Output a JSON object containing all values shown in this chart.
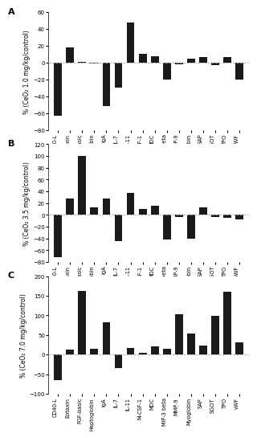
{
  "categories": [
    "CD40-L",
    "Eotaxin",
    "FGF-basic",
    "Haptoglobin",
    "IgA",
    "IL-7",
    "IL-11",
    "M-CSF-1",
    "MDC",
    "MIP-3 beta",
    "MMP-9",
    "Myoglobin",
    "SAP",
    "SGOT",
    "TPO",
    "vWF"
  ],
  "panel_A": {
    "values": [
      -63,
      18,
      1,
      -1,
      -52,
      -30,
      48,
      11,
      8,
      -20,
      -2,
      5,
      7,
      -3,
      7,
      -20
    ],
    "ylabel": "% (CeO₂ 1.0 mg/kg/control)",
    "ylim": [
      -80,
      60
    ],
    "yticks": [
      -80,
      -60,
      -40,
      -20,
      0,
      20,
      40,
      60
    ],
    "label": "A"
  },
  "panel_B": {
    "values": [
      -72,
      28,
      100,
      13,
      28,
      -45,
      37,
      10,
      16,
      -42,
      -3,
      -40,
      13,
      -3,
      -5,
      -8
    ],
    "ylabel": "% (CeO₂ 3.5 mg/kg/control)",
    "ylim": [
      -80,
      120
    ],
    "yticks": [
      -80,
      -60,
      -40,
      -20,
      0,
      20,
      40,
      60,
      80,
      100,
      120
    ],
    "label": "B"
  },
  "panel_C": {
    "values": [
      -65,
      12,
      163,
      15,
      82,
      -35,
      17,
      4,
      22,
      14,
      103,
      53,
      23,
      98,
      161,
      32
    ],
    "ylabel": "% (CeO₂ 7.0 mg/kg/control)",
    "ylim": [
      -100,
      200
    ],
    "yticks": [
      -100,
      -50,
      0,
      50,
      100,
      150,
      200
    ],
    "label": "C"
  },
  "bar_color": "#1a1a1a",
  "bar_width": 0.65,
  "ylabel_fontsize": 5.5,
  "label_fontsize": 8,
  "tick_fontsize": 5.0,
  "xtick_fontsize": 4.8
}
